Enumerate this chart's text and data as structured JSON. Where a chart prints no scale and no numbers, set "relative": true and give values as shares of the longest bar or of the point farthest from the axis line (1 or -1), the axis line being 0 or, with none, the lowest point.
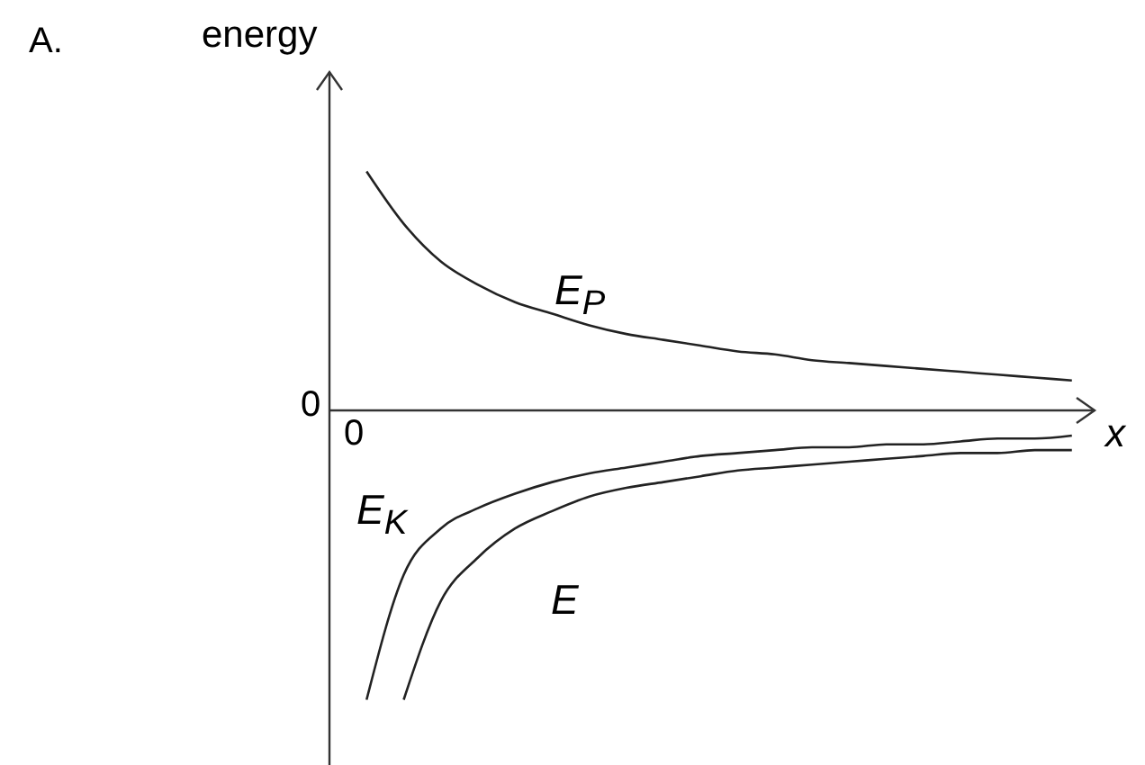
{
  "chart_data": {
    "type": "line",
    "relative": true,
    "ylabel": "energy",
    "xlabel": "x",
    "annotations": [
      "A.",
      "0",
      "0"
    ],
    "categories": [
      null,
      null,
      null,
      null,
      null,
      null,
      null,
      null,
      null,
      null,
      null,
      null,
      null,
      null,
      null,
      null,
      null,
      null,
      null,
      null,
      null,
      null
    ],
    "series": [
      {
        "name": "E$_{P}$",
        "color": "#222222",
        "values": [
          null,
          0.82,
          0.64,
          0.51,
          0.43,
          0.37,
          0.33,
          0.29,
          0.26,
          0.24,
          0.22,
          0.2,
          0.19,
          0.17,
          0.16,
          0.15,
          0.14,
          0.13,
          0.12,
          0.11,
          0.1,
          null
        ]
      },
      {
        "name": "E$_{K}$",
        "color": "#222222",
        "values": [
          null,
          -1,
          -0.57,
          -0.41,
          -0.34,
          -0.29,
          -0.25,
          -0.22,
          -0.2,
          -0.18,
          -0.16,
          -0.15,
          -0.14,
          -0.13,
          -0.13,
          -0.12,
          -0.12,
          -0.11,
          -0.1,
          -0.1,
          -0.09,
          null
        ]
      },
      {
        "name": "E",
        "color": "#222222",
        "values": [
          null,
          null,
          -1,
          -0.66,
          -0.51,
          -0.41,
          -0.35,
          -0.3,
          -0.27,
          -0.25,
          -0.23,
          -0.21,
          -0.2,
          -0.19,
          -0.18,
          -0.17,
          -0.16,
          -0.15,
          -0.15,
          -0.14,
          -0.14,
          null
        ]
      }
    ]
  }
}
